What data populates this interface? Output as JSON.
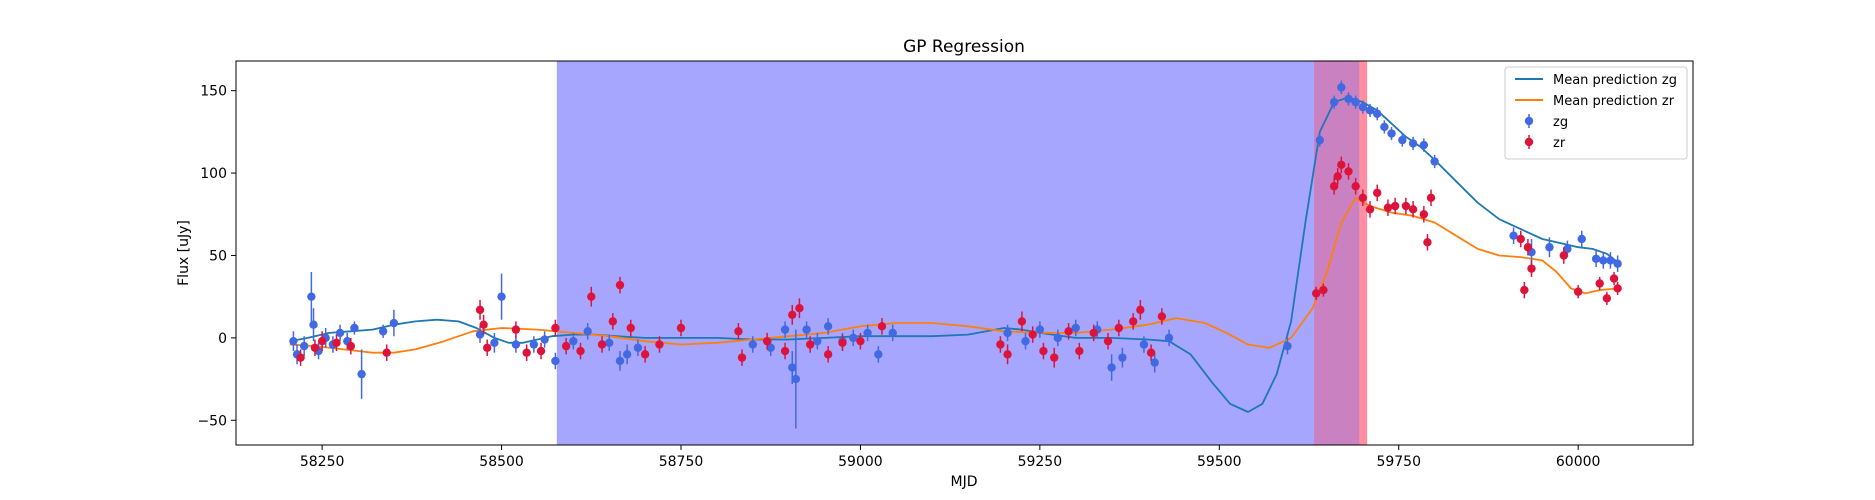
{
  "chart_data": {
    "type": "scatter",
    "title": "GP Regression",
    "xlabel": "MJD",
    "ylabel": "Flux [uJy]",
    "xlim": [
      58130,
      60160
    ],
    "ylim": [
      -65,
      168
    ],
    "xticks": [
      58250,
      58500,
      58750,
      59000,
      59250,
      59500,
      59750,
      60000
    ],
    "yticks": [
      -50,
      0,
      50,
      100,
      150
    ],
    "grid": false,
    "legend_position": "top-right",
    "colors": {
      "zg_line": "#1f77b4",
      "zr_line": "#ff7f0e",
      "zg_points": "#4169e1",
      "zr_points": "#dc143c",
      "blue_band": "#6666ff",
      "red_band": "#ff3355",
      "purple_band": "#bb3377"
    },
    "shaded_regions": [
      {
        "x0": 58577,
        "x1": 59632,
        "color": "#6666ff",
        "opacity": 0.58
      },
      {
        "x0": 59632,
        "x1": 59706,
        "color": "#ff3355",
        "opacity": 0.55
      },
      {
        "x0": 59632,
        "x1": 59695,
        "color": "#6666ff",
        "opacity": 0.35
      }
    ],
    "legend": [
      {
        "label": "Mean prediction zg",
        "kind": "line",
        "color": "#1f77b4"
      },
      {
        "label": "Mean prediction zr",
        "kind": "line",
        "color": "#ff7f0e"
      },
      {
        "label": "zg",
        "kind": "errorbar",
        "color": "#4169e1"
      },
      {
        "label": "zr",
        "kind": "errorbar",
        "color": "#dc143c"
      }
    ],
    "series": [
      {
        "name": "Mean prediction zg",
        "type": "line",
        "color": "#1f77b4",
        "points": [
          [
            58205,
            -2
          ],
          [
            58230,
            0
          ],
          [
            58260,
            3
          ],
          [
            58290,
            4
          ],
          [
            58320,
            5
          ],
          [
            58350,
            8
          ],
          [
            58380,
            10
          ],
          [
            58410,
            11
          ],
          [
            58440,
            10
          ],
          [
            58465,
            6
          ],
          [
            58490,
            0
          ],
          [
            58510,
            -3
          ],
          [
            58530,
            -3
          ],
          [
            58550,
            -1
          ],
          [
            58570,
            1
          ],
          [
            58600,
            2
          ],
          [
            58630,
            2
          ],
          [
            58660,
            1
          ],
          [
            58700,
            0
          ],
          [
            58750,
            0
          ],
          [
            58800,
            0
          ],
          [
            58850,
            -1
          ],
          [
            58900,
            -1
          ],
          [
            58950,
            0
          ],
          [
            59000,
            1
          ],
          [
            59050,
            1
          ],
          [
            59100,
            1
          ],
          [
            59150,
            2
          ],
          [
            59200,
            6
          ],
          [
            59225,
            5
          ],
          [
            59250,
            3
          ],
          [
            59300,
            0
          ],
          [
            59350,
            0
          ],
          [
            59400,
            -1
          ],
          [
            59430,
            -2
          ],
          [
            59460,
            -10
          ],
          [
            59490,
            -27
          ],
          [
            59515,
            -40
          ],
          [
            59540,
            -45
          ],
          [
            59560,
            -40
          ],
          [
            59580,
            -22
          ],
          [
            59600,
            10
          ],
          [
            59620,
            70
          ],
          [
            59640,
            125
          ],
          [
            59660,
            143
          ],
          [
            59680,
            146
          ],
          [
            59700,
            143
          ],
          [
            59720,
            138
          ],
          [
            59740,
            130
          ],
          [
            59760,
            122
          ],
          [
            59780,
            116
          ],
          [
            59800,
            108
          ],
          [
            59830,
            95
          ],
          [
            59860,
            82
          ],
          [
            59890,
            72
          ],
          [
            59920,
            66
          ],
          [
            59950,
            60
          ],
          [
            59980,
            57
          ],
          [
            60000,
            55
          ],
          [
            60020,
            54
          ],
          [
            60040,
            51
          ],
          [
            60055,
            46
          ]
        ]
      },
      {
        "name": "Mean prediction zr",
        "type": "line",
        "color": "#ff7f0e",
        "points": [
          [
            58205,
            -4
          ],
          [
            58240,
            -5
          ],
          [
            58280,
            -7
          ],
          [
            58320,
            -9
          ],
          [
            58350,
            -9
          ],
          [
            58380,
            -7
          ],
          [
            58420,
            -2
          ],
          [
            58460,
            4
          ],
          [
            58500,
            6
          ],
          [
            58550,
            5
          ],
          [
            58600,
            3
          ],
          [
            58650,
            1
          ],
          [
            58700,
            -2
          ],
          [
            58750,
            -4
          ],
          [
            58800,
            -3
          ],
          [
            58850,
            -1
          ],
          [
            58900,
            1
          ],
          [
            58950,
            3
          ],
          [
            59000,
            7
          ],
          [
            59050,
            9
          ],
          [
            59100,
            9
          ],
          [
            59150,
            7
          ],
          [
            59200,
            4
          ],
          [
            59250,
            3
          ],
          [
            59300,
            3
          ],
          [
            59350,
            5
          ],
          [
            59400,
            8
          ],
          [
            59440,
            12
          ],
          [
            59480,
            9
          ],
          [
            59510,
            3
          ],
          [
            59540,
            -4
          ],
          [
            59570,
            -6
          ],
          [
            59600,
            0
          ],
          [
            59630,
            18
          ],
          [
            59650,
            40
          ],
          [
            59670,
            70
          ],
          [
            59690,
            85
          ],
          [
            59710,
            80
          ],
          [
            59740,
            76
          ],
          [
            59770,
            74
          ],
          [
            59800,
            70
          ],
          [
            59830,
            62
          ],
          [
            59860,
            54
          ],
          [
            59890,
            50
          ],
          [
            59920,
            49
          ],
          [
            59950,
            47
          ],
          [
            59970,
            40
          ],
          [
            59990,
            30
          ],
          [
            60010,
            27
          ],
          [
            60030,
            29
          ],
          [
            60055,
            30
          ]
        ]
      },
      {
        "name": "zg",
        "type": "errorbar",
        "color": "#4169e1",
        "points": [
          [
            58210,
            -2,
            6
          ],
          [
            58215,
            -10,
            6
          ],
          [
            58225,
            -5,
            6
          ],
          [
            58235,
            25,
            15
          ],
          [
            58238,
            8,
            10
          ],
          [
            58245,
            -8,
            5
          ],
          [
            58255,
            0,
            6
          ],
          [
            58265,
            -4,
            5
          ],
          [
            58275,
            3,
            5
          ],
          [
            58285,
            -2,
            5
          ],
          [
            58295,
            6,
            4
          ],
          [
            58305,
            -22,
            15
          ],
          [
            58335,
            4,
            4
          ],
          [
            58350,
            9,
            8
          ],
          [
            58470,
            2,
            5
          ],
          [
            58490,
            -3,
            6
          ],
          [
            58500,
            25,
            14
          ],
          [
            58520,
            -4,
            5
          ],
          [
            58545,
            -4,
            5
          ],
          [
            58560,
            -1,
            5
          ],
          [
            58575,
            -14,
            5
          ],
          [
            58600,
            -2,
            5
          ],
          [
            58620,
            4,
            5
          ],
          [
            58650,
            -3,
            5
          ],
          [
            58665,
            -14,
            6
          ],
          [
            58675,
            -10,
            6
          ],
          [
            58690,
            -6,
            5
          ],
          [
            58850,
            -4,
            5
          ],
          [
            58875,
            -6,
            5
          ],
          [
            58895,
            5,
            5
          ],
          [
            58905,
            -18,
            10
          ],
          [
            58910,
            -25,
            30
          ],
          [
            58925,
            5,
            5
          ],
          [
            58940,
            -2,
            5
          ],
          [
            58955,
            7,
            5
          ],
          [
            58975,
            -2,
            5
          ],
          [
            58990,
            0,
            5
          ],
          [
            59010,
            3,
            5
          ],
          [
            59025,
            -10,
            5
          ],
          [
            59045,
            3,
            5
          ],
          [
            59205,
            3,
            5
          ],
          [
            59230,
            -2,
            5
          ],
          [
            59250,
            5,
            5
          ],
          [
            59275,
            0,
            5
          ],
          [
            59300,
            6,
            5
          ],
          [
            59330,
            5,
            5
          ],
          [
            59350,
            -18,
            8
          ],
          [
            59365,
            -12,
            6
          ],
          [
            59395,
            -4,
            5
          ],
          [
            59410,
            -15,
            6
          ],
          [
            59430,
            0,
            5
          ],
          [
            59595,
            -5,
            5
          ],
          [
            59640,
            120,
            4
          ],
          [
            59660,
            143,
            4
          ],
          [
            59670,
            152,
            4
          ],
          [
            59680,
            145,
            4
          ],
          [
            59690,
            143,
            4
          ],
          [
            59700,
            140,
            4
          ],
          [
            59710,
            138,
            4
          ],
          [
            59720,
            136,
            4
          ],
          [
            59730,
            128,
            4
          ],
          [
            59740,
            124,
            4
          ],
          [
            59755,
            120,
            4
          ],
          [
            59770,
            118,
            4
          ],
          [
            59785,
            117,
            4
          ],
          [
            59800,
            107,
            4
          ],
          [
            59910,
            62,
            5
          ],
          [
            59935,
            52,
            8
          ],
          [
            59960,
            55,
            6
          ],
          [
            59985,
            54,
            5
          ],
          [
            60005,
            60,
            5
          ],
          [
            60025,
            48,
            5
          ],
          [
            60035,
            47,
            5
          ],
          [
            60045,
            47,
            5
          ],
          [
            60055,
            45,
            5
          ]
        ]
      },
      {
        "name": "zr",
        "type": "errorbar",
        "color": "#dc143c",
        "points": [
          [
            58220,
            -12,
            5
          ],
          [
            58240,
            -6,
            5
          ],
          [
            58250,
            -2,
            6
          ],
          [
            58270,
            -3,
            5
          ],
          [
            58290,
            -5,
            5
          ],
          [
            58340,
            -9,
            5
          ],
          [
            58470,
            17,
            6
          ],
          [
            58475,
            8,
            6
          ],
          [
            58480,
            -6,
            5
          ],
          [
            58520,
            5,
            5
          ],
          [
            58535,
            -9,
            5
          ],
          [
            58555,
            -8,
            5
          ],
          [
            58575,
            6,
            5
          ],
          [
            58590,
            -5,
            5
          ],
          [
            58610,
            -8,
            5
          ],
          [
            58625,
            25,
            6
          ],
          [
            58640,
            -4,
            5
          ],
          [
            58655,
            10,
            5
          ],
          [
            58665,
            32,
            5
          ],
          [
            58680,
            6,
            5
          ],
          [
            58700,
            -10,
            5
          ],
          [
            58720,
            -4,
            5
          ],
          [
            58750,
            6,
            5
          ],
          [
            58830,
            4,
            5
          ],
          [
            58835,
            -12,
            5
          ],
          [
            58870,
            -2,
            5
          ],
          [
            58895,
            -8,
            5
          ],
          [
            58905,
            14,
            6
          ],
          [
            58915,
            18,
            6
          ],
          [
            58930,
            -4,
            5
          ],
          [
            58955,
            -10,
            5
          ],
          [
            58975,
            -3,
            5
          ],
          [
            59000,
            -2,
            5
          ],
          [
            59030,
            7,
            5
          ],
          [
            59195,
            -4,
            5
          ],
          [
            59205,
            -10,
            6
          ],
          [
            59225,
            10,
            6
          ],
          [
            59240,
            2,
            5
          ],
          [
            59255,
            -8,
            5
          ],
          [
            59270,
            -12,
            6
          ],
          [
            59290,
            4,
            5
          ],
          [
            59305,
            -8,
            5
          ],
          [
            59325,
            3,
            5
          ],
          [
            59345,
            -2,
            5
          ],
          [
            59360,
            6,
            5
          ],
          [
            59380,
            10,
            5
          ],
          [
            59390,
            17,
            6
          ],
          [
            59405,
            -9,
            5
          ],
          [
            59420,
            13,
            5
          ],
          [
            59635,
            27,
            4
          ],
          [
            59645,
            29,
            4
          ],
          [
            59660,
            92,
            5
          ],
          [
            59665,
            98,
            5
          ],
          [
            59670,
            105,
            5
          ],
          [
            59680,
            101,
            5
          ],
          [
            59690,
            92,
            5
          ],
          [
            59700,
            85,
            5
          ],
          [
            59710,
            78,
            5
          ],
          [
            59720,
            88,
            5
          ],
          [
            59735,
            79,
            5
          ],
          [
            59745,
            80,
            5
          ],
          [
            59760,
            80,
            5
          ],
          [
            59770,
            78,
            5
          ],
          [
            59785,
            75,
            5
          ],
          [
            59790,
            58,
            5
          ],
          [
            59795,
            85,
            5
          ],
          [
            59920,
            60,
            5
          ],
          [
            59930,
            55,
            5
          ],
          [
            59935,
            42,
            5
          ],
          [
            59925,
            29,
            5
          ],
          [
            59980,
            50,
            5
          ],
          [
            60000,
            28,
            4
          ],
          [
            60030,
            33,
            4
          ],
          [
            60040,
            24,
            4
          ],
          [
            60050,
            36,
            4
          ],
          [
            60055,
            30,
            4
          ]
        ]
      }
    ]
  }
}
